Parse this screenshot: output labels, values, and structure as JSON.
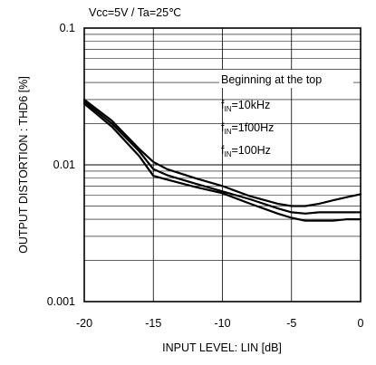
{
  "chart_data": {
    "type": "line",
    "condition_text": "Vᴄᴄ=5V / Ta=25℃",
    "xlabel": "INPUT LEVEL: LIN [dB]",
    "ylabel": "OUTPUT DISTORTION : THD6 [%]",
    "xlim": [
      -20,
      0
    ],
    "ylim": [
      0.001,
      0.1
    ],
    "yscale": "log",
    "x_ticks": [
      -20,
      -15,
      -10,
      -5,
      0
    ],
    "x_tick_labels": [
      "-20",
      "-15",
      "-10",
      "-5",
      "0"
    ],
    "y_ticks": [
      0.001,
      0.01,
      0.1
    ],
    "y_tick_labels": [
      "0.001",
      "0.01",
      "0.1"
    ],
    "grid": true,
    "annotation": {
      "title": "Beginning at the top",
      "lines": [
        "10kHz",
        "1f00Hz",
        "100Hz"
      ],
      "prefix_main": "f",
      "prefix_sub": "IN",
      "prefix_eq": "="
    },
    "series": [
      {
        "x": [
          -20,
          -18,
          -16,
          -15,
          -14,
          -12,
          -10,
          -8,
          -6,
          -5,
          -4,
          -3,
          -2,
          -1,
          0
        ],
        "values": [
          0.03,
          0.021,
          0.013,
          0.0105,
          0.0093,
          0.008,
          0.007,
          0.0059,
          0.0052,
          0.005,
          0.005,
          0.0052,
          0.0055,
          0.0058,
          0.0061
        ]
      },
      {
        "x": [
          -20,
          -18,
          -16,
          -15,
          -14,
          -12,
          -10,
          -8,
          -6,
          -5,
          -4,
          -3,
          -2,
          -1,
          0
        ],
        "values": [
          0.029,
          0.02,
          0.0125,
          0.0093,
          0.0084,
          0.0073,
          0.0064,
          0.0056,
          0.0048,
          0.0045,
          0.0044,
          0.0045,
          0.0045,
          0.0045,
          0.0045
        ]
      },
      {
        "x": [
          -20,
          -18,
          -16,
          -15,
          -14,
          -12,
          -10,
          -8,
          -6,
          -5,
          -4,
          -3,
          -2,
          -1,
          0
        ],
        "values": [
          0.028,
          0.019,
          0.0115,
          0.0083,
          0.0078,
          0.0069,
          0.0062,
          0.0052,
          0.0044,
          0.0041,
          0.0039,
          0.0039,
          0.0039,
          0.004,
          0.004
        ]
      }
    ]
  }
}
